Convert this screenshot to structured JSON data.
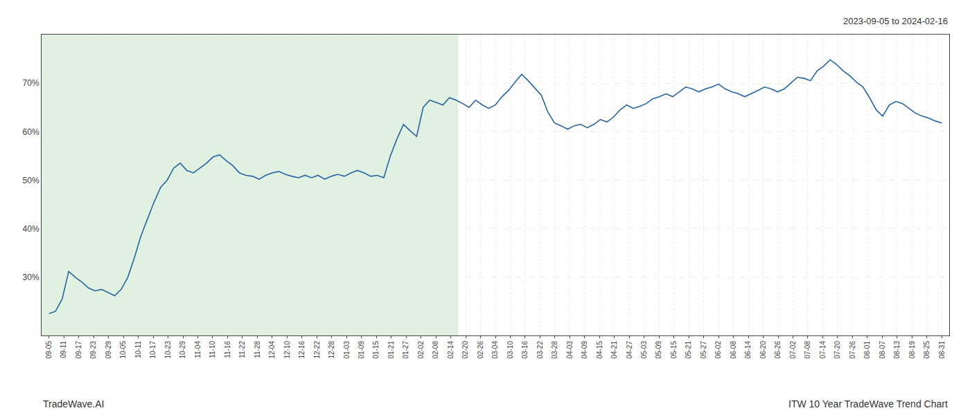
{
  "chart_data": {
    "type": "line",
    "title": "ITW 10 Year TradeWave Trend Chart",
    "subtitle": "2023-09-05 to 2024-02-16",
    "annotations": [
      "TradeWave.AI"
    ],
    "color": "#2464a4",
    "grid": true,
    "xlim": [
      -0.5,
      60.5
    ],
    "xticks": [
      {
        "value": 0,
        "label": "09-05"
      },
      {
        "value": 1,
        "label": "09-11"
      },
      {
        "value": 2,
        "label": "09-17"
      },
      {
        "value": 3,
        "label": "09-23"
      },
      {
        "value": 4,
        "label": "09-29"
      },
      {
        "value": 5,
        "label": "10-05"
      },
      {
        "value": 6,
        "label": "10-11"
      },
      {
        "value": 7,
        "label": "10-17"
      },
      {
        "value": 8,
        "label": "10-23"
      },
      {
        "value": 9,
        "label": "10-29"
      },
      {
        "value": 10,
        "label": "11-04"
      },
      {
        "value": 11,
        "label": "11-10"
      },
      {
        "value": 12,
        "label": "11-16"
      },
      {
        "value": 13,
        "label": "11-22"
      },
      {
        "value": 14,
        "label": "11-28"
      },
      {
        "value": 15,
        "label": "12-04"
      },
      {
        "value": 16,
        "label": "12-10"
      },
      {
        "value": 17,
        "label": "12-16"
      },
      {
        "value": 18,
        "label": "12-22"
      },
      {
        "value": 19,
        "label": "12-28"
      },
      {
        "value": 20,
        "label": "01-03"
      },
      {
        "value": 21,
        "label": "01-09"
      },
      {
        "value": 22,
        "label": "01-15"
      },
      {
        "value": 23,
        "label": "01-21"
      },
      {
        "value": 24,
        "label": "01-27"
      },
      {
        "value": 25,
        "label": "02-02"
      },
      {
        "value": 26,
        "label": "02-08"
      },
      {
        "value": 27,
        "label": "02-14"
      },
      {
        "value": 28,
        "label": "02-20"
      },
      {
        "value": 29,
        "label": "02-26"
      },
      {
        "value": 30,
        "label": "03-04"
      },
      {
        "value": 31,
        "label": "03-10"
      },
      {
        "value": 32,
        "label": "03-16"
      },
      {
        "value": 33,
        "label": "03-22"
      },
      {
        "value": 34,
        "label": "03-28"
      },
      {
        "value": 35,
        "label": "04-03"
      },
      {
        "value": 36,
        "label": "04-09"
      },
      {
        "value": 37,
        "label": "04-15"
      },
      {
        "value": 38,
        "label": "04-21"
      },
      {
        "value": 39,
        "label": "04-27"
      },
      {
        "value": 40,
        "label": "05-03"
      },
      {
        "value": 41,
        "label": "05-09"
      },
      {
        "value": 42,
        "label": "05-15"
      },
      {
        "value": 43,
        "label": "05-21"
      },
      {
        "value": 44,
        "label": "05-27"
      },
      {
        "value": 45,
        "label": "06-02"
      },
      {
        "value": 46,
        "label": "06-08"
      },
      {
        "value": 47,
        "label": "06-14"
      },
      {
        "value": 48,
        "label": "06-20"
      },
      {
        "value": 49,
        "label": "06-26"
      },
      {
        "value": 50,
        "label": "07-02"
      },
      {
        "value": 51,
        "label": "07-08"
      },
      {
        "value": 52,
        "label": "07-14"
      },
      {
        "value": 53,
        "label": "07-20"
      },
      {
        "value": 54,
        "label": "07-26"
      },
      {
        "value": 55,
        "label": "08-01"
      },
      {
        "value": 56,
        "label": "08-07"
      },
      {
        "value": 57,
        "label": "08-13"
      },
      {
        "value": 58,
        "label": "08-19"
      },
      {
        "value": 59,
        "label": "08-25"
      },
      {
        "value": 60,
        "label": "08-31"
      }
    ],
    "ylim": [
      18,
      80
    ],
    "yticks": [
      {
        "value": 30,
        "label": "30%"
      },
      {
        "value": 40,
        "label": "40%"
      },
      {
        "value": 50,
        "label": "50%"
      },
      {
        "value": 60,
        "label": "60%"
      },
      {
        "value": 70,
        "label": "70%"
      }
    ],
    "shading": {
      "x": [
        -0.5,
        27.5
      ],
      "color": "#c8e6c8"
    },
    "x": [
      0,
      0.441176,
      0.882353,
      1.323529,
      1.764706,
      2.205882,
      2.647059,
      3.088235,
      3.529412,
      3.970588,
      4.411765,
      4.852941,
      5.294118,
      5.735294,
      6.176471,
      6.617647,
      7.058824,
      7.5,
      7.941176,
      8.382353,
      8.823529,
      9.264706,
      9.705882,
      10.147059,
      10.588235,
      11.029412,
      11.470588,
      11.911765,
      12.352941,
      12.794118,
      13.235294,
      13.676471,
      14.117647,
      14.558824,
      15,
      15.441176,
      15.882353,
      16.323529,
      16.764706,
      17.205882,
      17.647059,
      18.088235,
      18.529412,
      18.970588,
      19.411765,
      19.852941,
      20.294118,
      20.735294,
      21.176471,
      21.617647,
      22.058824,
      22.5,
      22.941176,
      23.382353,
      23.823529,
      24.264706,
      24.705882,
      25.147059,
      25.588235,
      26.029412,
      26.470588,
      26.911765,
      27.352941,
      27.794118,
      28.235294,
      28.676471,
      29.117647,
      29.558824,
      30,
      30.441176,
      30.882353,
      31.323529,
      31.764706,
      32.205882,
      32.647059,
      33.088235,
      33.529412,
      33.970588,
      34.411765,
      34.852941,
      35.294118,
      35.735294,
      36.176471,
      36.617647,
      37.058824,
      37.5,
      37.941176,
      38.382353,
      38.823529,
      39.264706,
      39.705882,
      40.147059,
      40.588235,
      41.029412,
      41.470588,
      41.911765,
      42.352941,
      42.794118,
      43.235294,
      43.676471,
      44.117647,
      44.558824,
      45,
      45.441176,
      45.882353,
      46.323529,
      46.764706,
      47.205882,
      47.647059,
      48.088235,
      48.529412,
      48.970588,
      49.411765,
      49.852941,
      50.294118,
      50.735294,
      51.176471,
      51.617647,
      52.058824,
      52.5,
      52.941176,
      53.382353,
      53.823529,
      54.264706,
      54.705882,
      55.147059,
      55.588235,
      56.029412,
      56.470588,
      56.911765,
      57.352941,
      57.794118,
      58.235294,
      58.676471,
      59.117647,
      59.558824,
      60
    ],
    "values": [
      22.5,
      23.0,
      25.5,
      31.2,
      30.0,
      29.0,
      27.8,
      27.2,
      27.5,
      26.8,
      26.2,
      27.5,
      30.0,
      34.0,
      38.5,
      42.0,
      45.5,
      48.5,
      50.0,
      52.5,
      53.5,
      52.0,
      51.5,
      52.5,
      53.5,
      54.8,
      55.2,
      54.0,
      53.0,
      51.5,
      51.0,
      50.8,
      50.2,
      51.0,
      51.5,
      51.8,
      51.2,
      50.8,
      50.5,
      51.0,
      50.5,
      51.0,
      50.2,
      50.8,
      51.2,
      50.8,
      51.5,
      52.0,
      51.5,
      50.8,
      51.0,
      50.5,
      55.0,
      58.5,
      61.5,
      60.2,
      59.0,
      65.0,
      66.5,
      66.0,
      65.5,
      67.0,
      66.5,
      65.8,
      65.0,
      66.5,
      65.5,
      64.8,
      65.5,
      67.2,
      68.5,
      70.2,
      71.8,
      70.5,
      69.0,
      67.5,
      64.0,
      61.8,
      61.2,
      60.5,
      61.2,
      61.5,
      60.8,
      61.5,
      62.5,
      62.0,
      63.0,
      64.5,
      65.5,
      64.8,
      65.2,
      65.8,
      66.8,
      67.2,
      67.8,
      67.2,
      68.2,
      69.2,
      68.8,
      68.2,
      68.8,
      69.2,
      69.8,
      68.8,
      68.2,
      67.8,
      67.2,
      67.8,
      68.5,
      69.2,
      68.8,
      68.2,
      68.8,
      70.0,
      71.2,
      71.0,
      70.5,
      72.5,
      73.5,
      74.8,
      73.8,
      72.5,
      71.5,
      70.2,
      69.2,
      67.0,
      64.5,
      63.2,
      65.5,
      66.2,
      65.8,
      64.8,
      63.8,
      63.2,
      62.8,
      62.2,
      61.8
    ]
  }
}
